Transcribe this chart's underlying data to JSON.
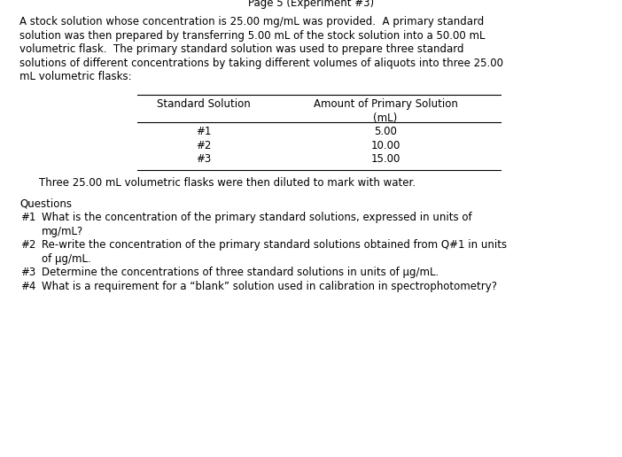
{
  "bg_color": "#ffffff",
  "text_color": "#000000",
  "paragraph_lines": [
    "A stock solution whose concentration is 25.00 mg/mL was provided.  A primary standard",
    "solution was then prepared by transferring 5.00 mL of the stock solution into a 50.00 mL",
    "volumetric flask.  The primary standard solution was used to prepare three standard",
    "solutions of different concentrations by taking different volumes of aliquots into three 25.00",
    "mL volumetric flasks:"
  ],
  "table_col1_header": "Standard Solution",
  "table_col2_header_line1": "Amount of Primary Solution",
  "table_col2_header_line2": "(mL)",
  "table_rows": [
    [
      "#1",
      "5.00"
    ],
    [
      "#2",
      "10.00"
    ],
    [
      "#3",
      "15.00"
    ]
  ],
  "below_table_text": "Three 25.00 mL volumetric flasks were then diluted to mark with water.",
  "questions_header": "Questions",
  "questions": [
    {
      "num": "#1",
      "lines": [
        "What is the concentration of the primary standard solutions, expressed in units of",
        "mg/mL?"
      ]
    },
    {
      "num": "#2",
      "lines": [
        "Re-write the concentration of the primary standard solutions obtained from Q#1 in units",
        "of μg/mL."
      ]
    },
    {
      "num": "#3",
      "lines": [
        "Determine the concentrations of three standard solutions in units of μg/mL."
      ]
    },
    {
      "num": "#4",
      "lines": [
        "What is a requirement for a “blank” solution used in calibration in spectrophotometry?"
      ]
    }
  ],
  "footer": "Page 5 (Experiment #3)",
  "font_family": "DejaVu Sans",
  "body_fontsize": 8.5,
  "footer_fontsize": 8.5,
  "fig_width": 7.02,
  "fig_height": 5.16,
  "dpi": 100
}
